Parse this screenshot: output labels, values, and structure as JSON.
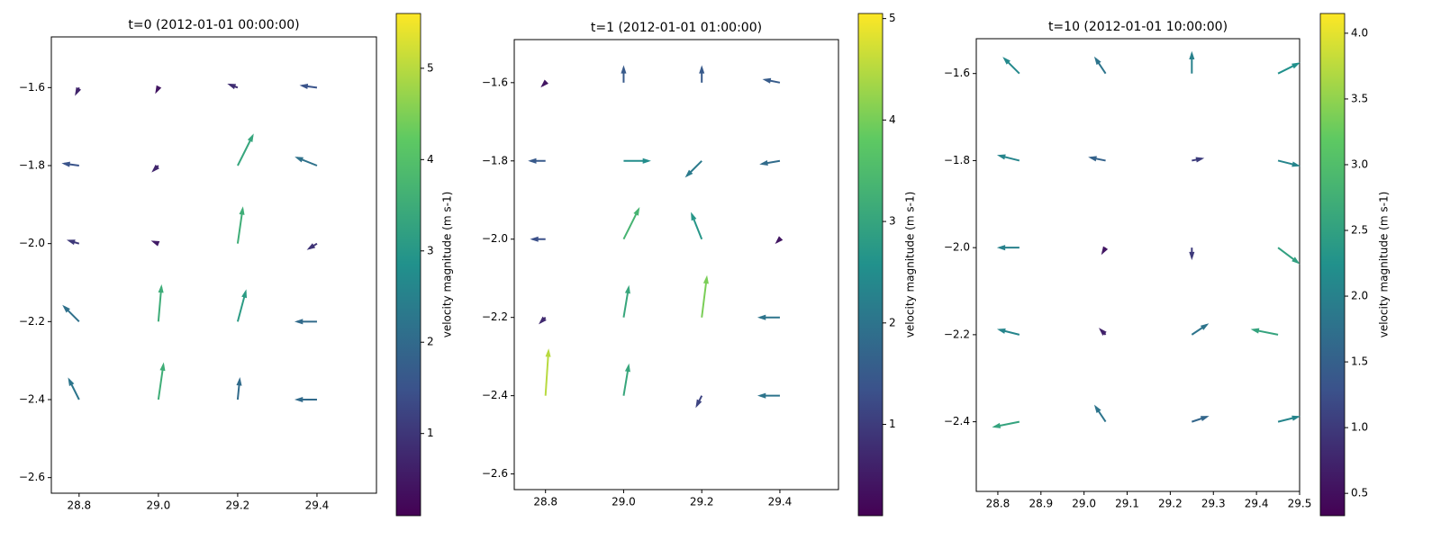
{
  "chart_data": [
    {
      "type": "quiver",
      "title": "t=0 (2012-01-01 00:00:00)",
      "colorbar_label": "velocity magnitude (m s-1)",
      "colormap": "viridis",
      "xlim": [
        28.73,
        29.55
      ],
      "ylim": [
        -2.64,
        -1.47
      ],
      "xticks": [
        28.8,
        {
          "value": 29.0,
          "label": "29.0"
        },
        29.2,
        29.4
      ],
      "yticks": [
        {
          "value": -1.6,
          "label": "−1.6"
        },
        {
          "value": -1.8,
          "label": "−1.8"
        },
        {
          "value": -2.0,
          "label": "−2.0"
        },
        {
          "value": -2.2,
          "label": "−2.2"
        },
        {
          "value": -2.4,
          "label": "−2.4"
        },
        {
          "value": -2.6,
          "label": "−2.6"
        }
      ],
      "clim": [
        0.1,
        5.6
      ],
      "cticks": [
        1,
        2,
        3,
        4,
        5
      ],
      "x": [
        28.8,
        29.0,
        29.2,
        29.4,
        28.8,
        29.0,
        29.2,
        29.4,
        28.8,
        29.0,
        29.2,
        29.4,
        28.8,
        29.0,
        29.2,
        29.4,
        28.8,
        29.0,
        29.2,
        29.4
      ],
      "y": [
        -1.6,
        -1.6,
        -1.6,
        -1.6,
        -1.8,
        -1.8,
        -1.8,
        -1.8,
        -2.0,
        -2.0,
        -2.0,
        -2.0,
        -2.2,
        -2.2,
        -2.2,
        -2.2,
        -2.4,
        -2.4,
        -2.4,
        -2.4
      ],
      "u": [
        -0.3,
        -0.2,
        -0.8,
        -1.5,
        -1.5,
        -0.5,
        1.5,
        -2,
        -1,
        -0.5,
        0.5,
        -0.8,
        -1.5,
        0.3,
        0.8,
        -2,
        -1,
        0.5,
        0.2,
        -2
      ],
      "v": [
        -0.6,
        -0.4,
        0.3,
        0.2,
        0.2,
        -0.5,
        3,
        0.8,
        0.3,
        0.2,
        3.5,
        -0.5,
        1.5,
        3.5,
        3,
        0,
        2,
        3.5,
        2,
        0
      ]
    },
    {
      "type": "quiver",
      "title": "t=1 (2012-01-01 01:00:00)",
      "colorbar_label": "velocity magnitude (m s-1)",
      "colormap": "viridis",
      "xlim": [
        28.72,
        29.55
      ],
      "ylim": [
        -2.64,
        -1.49
      ],
      "xticks": [
        28.8,
        {
          "value": 29.0,
          "label": "29.0"
        },
        29.2,
        29.4
      ],
      "yticks": [
        {
          "value": -1.6,
          "label": "−1.6"
        },
        {
          "value": -1.8,
          "label": "−1.8"
        },
        {
          "value": -2.0,
          "label": "−2.0"
        },
        {
          "value": -2.2,
          "label": "−2.2"
        },
        {
          "value": -2.4,
          "label": "−2.4"
        },
        {
          "value": -2.6,
          "label": "−2.6"
        }
      ],
      "clim": [
        0.1,
        5.05
      ],
      "cticks": [
        1,
        2,
        3,
        4,
        5
      ],
      "x": [
        28.8,
        29.0,
        29.2,
        29.4,
        28.8,
        29.0,
        29.2,
        29.4,
        28.8,
        29.0,
        29.2,
        29.4,
        28.8,
        29.0,
        29.2,
        29.4,
        28.8,
        29.0,
        29.2,
        29.4
      ],
      "y": [
        -1.6,
        -1.6,
        -1.6,
        -1.6,
        -1.8,
        -1.8,
        -1.8,
        -1.8,
        -2.0,
        -2.0,
        -2.0,
        -2.0,
        -2.2,
        -2.2,
        -2.2,
        -2.2,
        -2.4,
        -2.4,
        -2.4,
        -2.4
      ],
      "u": [
        -0.3,
        0,
        0,
        -1.5,
        -1.5,
        2.5,
        -1.5,
        -1.8,
        -1.3,
        1.5,
        -1,
        -0.3,
        -0.5,
        0.5,
        0.5,
        -2,
        0.3,
        0.5,
        -0.5,
        -2
      ],
      "v": [
        -0.3,
        1.5,
        1.5,
        0.3,
        0,
        0,
        -1.5,
        -0.3,
        0,
        3,
        2.5,
        -0.3,
        -0.5,
        3,
        4,
        0,
        4.5,
        3,
        -1,
        0
      ]
    },
    {
      "type": "quiver",
      "title": "t=10 (2012-01-01 10:00:00)",
      "colorbar_label": "velocity magnitude (m s-1)",
      "colormap": "viridis",
      "xlim": [
        28.75,
        29.5
      ],
      "ylim": [
        -2.56,
        -1.52
      ],
      "xticks": [
        28.8,
        28.9,
        {
          "value": 29.0,
          "label": "29.0"
        },
        29.1,
        29.2,
        29.3,
        29.4,
        29.5
      ],
      "yticks": [
        {
          "value": -1.6,
          "label": "−1.6"
        },
        {
          "value": -1.8,
          "label": "−1.8"
        },
        {
          "value": -2.0,
          "label": "−2.0"
        },
        {
          "value": -2.2,
          "label": "−2.2"
        },
        {
          "value": -2.4,
          "label": "−2.4"
        }
      ],
      "clim": [
        0.33,
        4.15
      ],
      "cticks": [
        0.5,
        {
          "value": 1.0,
          "label": "1.0"
        },
        1.5,
        {
          "value": 2.0,
          "label": "2.0"
        },
        2.5,
        {
          "value": 3.0,
          "label": "3.0"
        },
        3.5,
        {
          "value": 4.0,
          "label": "4.0"
        }
      ],
      "x": [
        28.85,
        29.05,
        29.25,
        29.45,
        28.85,
        29.05,
        29.25,
        29.45,
        28.85,
        29.05,
        29.25,
        29.45,
        28.85,
        29.05,
        29.25,
        29.45,
        28.85,
        29.05,
        29.25,
        29.45
      ],
      "y": [
        -1.6,
        -1.6,
        -1.6,
        -1.6,
        -1.8,
        -1.8,
        -1.8,
        -1.8,
        -2.0,
        -2.0,
        -2.0,
        -2.0,
        -2.2,
        -2.2,
        -2.2,
        -2.2,
        -2.4,
        -2.4,
        -2.4,
        -2.4
      ],
      "u": [
        -1.5,
        -1,
        0,
        2,
        -2,
        -1.5,
        1,
        2,
        -2,
        -0.3,
        0,
        2,
        -2,
        -0.5,
        1.5,
        -2.5,
        -2.5,
        -1,
        1.5,
        2
      ],
      "v": [
        1.5,
        1.5,
        2,
        1,
        0.5,
        0.3,
        0.2,
        -0.5,
        0,
        -0.5,
        -1,
        -1.5,
        0.5,
        0.5,
        1,
        0.5,
        -0.5,
        1.5,
        0.5,
        0.5
      ]
    }
  ]
}
